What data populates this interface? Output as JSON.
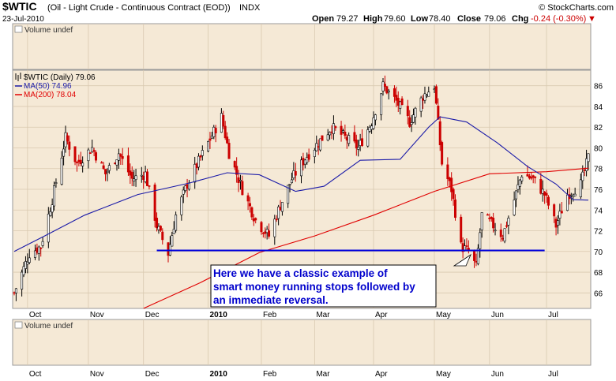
{
  "header": {
    "symbol": "$WTIC",
    "name": "(Oil - Light Crude - Continuous Contract (EOD))",
    "exchange": "INDX",
    "copyright": "© StockCharts.com",
    "date": "23-Jul-2010",
    "open_label": "Open",
    "open": "79.27",
    "high_label": "High",
    "high": "79.60",
    "low_label": "Low",
    "low": "78.40",
    "close_label": "Close",
    "close": "79.06",
    "chg_label": "Chg",
    "chg": "-0.24 (-0.30%)"
  },
  "panels": {
    "volume_top": "Volume undef",
    "volume_bottom": "Volume undef"
  },
  "legend": {
    "price": "$WTIC (Daily) 79.06",
    "ma50": "MA(50) 74.96",
    "ma200": "MA(200) 78.04"
  },
  "annotation": {
    "lines": [
      "Here we have a classic example of",
      "smart money running stops followed by",
      "an immediate reversal."
    ]
  },
  "colors": {
    "panel_bg": "#f5e9d6",
    "up_candle": "#000000",
    "down_candle": "#cc0000",
    "ma50": "#1a1aa8",
    "ma200": "#e00000",
    "support_line": "#0000dd",
    "annotation_text": "#0000cc"
  },
  "chart_data": {
    "type": "candlestick",
    "title": "$WTIC (Oil - Light Crude - Continuous Contract (EOD))",
    "ylim": [
      64.5,
      87.5
    ],
    "y_ticks": [
      66,
      68,
      70,
      72,
      74,
      76,
      78,
      80,
      82,
      84,
      86
    ],
    "x_labels": [
      "Oct",
      "Nov",
      "Dec",
      "2010",
      "Feb",
      "Mar",
      "Apr",
      "May",
      "Jun",
      "Jul"
    ],
    "x_label_dates": [
      "2009-10-01",
      "2009-11-02",
      "2009-12-01",
      "2010-01-04",
      "2010-02-01",
      "2010-03-01",
      "2010-04-01",
      "2010-05-03",
      "2010-06-01",
      "2010-07-01"
    ],
    "date_range": [
      "2009-09-24",
      "2010-07-23"
    ],
    "price_path": [
      [
        "2009-09-24",
        66.0
      ],
      [
        "2009-10-02",
        69.8
      ],
      [
        "2009-10-08",
        70.5
      ],
      [
        "2009-10-14",
        75.0
      ],
      [
        "2009-10-21",
        81.0
      ],
      [
        "2009-10-27",
        78.5
      ],
      [
        "2009-11-04",
        80.0
      ],
      [
        "2009-11-11",
        77.5
      ],
      [
        "2009-11-18",
        79.5
      ],
      [
        "2009-11-25",
        77.0
      ],
      [
        "2009-12-02",
        77.5
      ],
      [
        "2009-12-08",
        72.5
      ],
      [
        "2009-12-14",
        69.8
      ],
      [
        "2009-12-18",
        73.5
      ],
      [
        "2009-12-24",
        76.5
      ],
      [
        "2010-01-04",
        80.5
      ],
      [
        "2010-01-11",
        83.0
      ],
      [
        "2010-01-15",
        79.5
      ],
      [
        "2010-01-22",
        76.0
      ],
      [
        "2010-01-29",
        73.0
      ],
      [
        "2010-02-05",
        71.5
      ],
      [
        "2010-02-10",
        74.0
      ],
      [
        "2010-02-17",
        77.0
      ],
      [
        "2010-02-24",
        79.0
      ],
      [
        "2010-03-03",
        80.5
      ],
      [
        "2010-03-10",
        82.0
      ],
      [
        "2010-03-17",
        81.0
      ],
      [
        "2010-03-24",
        80.0
      ],
      [
        "2010-03-31",
        82.5
      ],
      [
        "2010-04-06",
        86.0
      ],
      [
        "2010-04-13",
        84.5
      ],
      [
        "2010-04-20",
        82.5
      ],
      [
        "2010-04-27",
        85.0
      ],
      [
        "2010-05-03",
        86.0
      ],
      [
        "2010-05-07",
        78.5
      ],
      [
        "2010-05-12",
        76.0
      ],
      [
        "2010-05-17",
        70.5
      ],
      [
        "2010-05-21",
        70.0
      ],
      [
        "2010-05-25",
        68.5
      ],
      [
        "2010-05-28",
        73.5
      ],
      [
        "2010-06-03",
        72.5
      ],
      [
        "2010-06-08",
        71.5
      ],
      [
        "2010-06-14",
        75.0
      ],
      [
        "2010-06-18",
        77.5
      ],
      [
        "2010-06-24",
        77.0
      ],
      [
        "2010-06-30",
        75.5
      ],
      [
        "2010-07-06",
        72.5
      ],
      [
        "2010-07-12",
        75.5
      ],
      [
        "2010-07-19",
        76.5
      ],
      [
        "2010-07-23",
        79.06
      ]
    ],
    "series": [
      {
        "name": "MA(50)",
        "values": [
          [
            "2009-09-24",
            70.0
          ],
          [
            "2009-10-10",
            71.5
          ],
          [
            "2009-10-31",
            73.5
          ],
          [
            "2009-11-28",
            75.5
          ],
          [
            "2009-12-25",
            76.6
          ],
          [
            "2010-01-14",
            77.6
          ],
          [
            "2010-01-31",
            77.4
          ],
          [
            "2010-02-19",
            75.8
          ],
          [
            "2010-03-06",
            76.3
          ],
          [
            "2010-03-25",
            78.8
          ],
          [
            "2010-04-15",
            78.9
          ],
          [
            "2010-04-30",
            82.0
          ],
          [
            "2010-05-06",
            83.0
          ],
          [
            "2010-05-20",
            82.5
          ],
          [
            "2010-06-05",
            80.5
          ],
          [
            "2010-06-21",
            78.2
          ],
          [
            "2010-07-06",
            76.5
          ],
          [
            "2010-07-15",
            75.0
          ],
          [
            "2010-07-23",
            74.96
          ]
        ]
      },
      {
        "name": "MA(200)",
        "values": [
          [
            "2009-12-01",
            64.5
          ],
          [
            "2009-12-31",
            67.0
          ],
          [
            "2010-01-31",
            69.9
          ],
          [
            "2010-03-01",
            71.5
          ],
          [
            "2010-04-01",
            73.5
          ],
          [
            "2010-05-03",
            75.8
          ],
          [
            "2010-06-01",
            77.5
          ],
          [
            "2010-07-01",
            77.7
          ],
          [
            "2010-07-23",
            78.04
          ]
        ]
      }
    ],
    "support_line": {
      "from": "2009-12-08",
      "to": "2010-06-30",
      "value": 70.1
    },
    "legend_placement": "top-left",
    "grid": true
  }
}
